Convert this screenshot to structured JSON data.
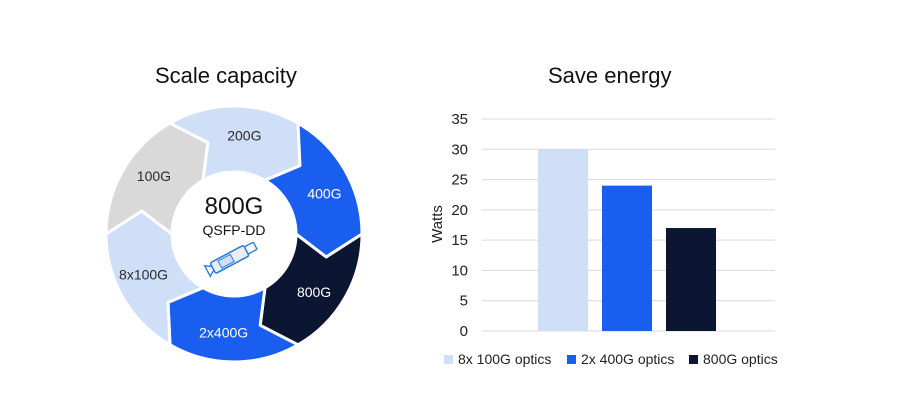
{
  "titles": {
    "left": "Scale capacity",
    "right": "Save energy"
  },
  "donut": {
    "center_title": "800G",
    "center_subtitle": "QSFP-DD",
    "segments": [
      {
        "label": "200G",
        "color": "#cfdff7",
        "text_color": "#2b2b2b"
      },
      {
        "label": "400G",
        "color": "#1a5ef0",
        "text_color": "#ffffff"
      },
      {
        "label": "800G",
        "color": "#0b1633",
        "text_color": "#ffffff"
      },
      {
        "label": "2x400G",
        "color": "#1a5ef0",
        "text_color": "#ffffff"
      },
      {
        "label": "8x100G",
        "color": "#cfdff7",
        "text_color": "#2b2b2b"
      },
      {
        "label": "100G",
        "color": "#d9d9d9",
        "text_color": "#2b2b2b"
      }
    ],
    "icon": "qsfp-transceiver-icon"
  },
  "chart_data": {
    "type": "bar",
    "title": "Save energy",
    "xlabel": "",
    "ylabel": "Watts",
    "ylim": [
      0,
      35
    ],
    "yticks": [
      0,
      5,
      10,
      15,
      20,
      25,
      30,
      35
    ],
    "grid": true,
    "legend_position": "bottom",
    "series": [
      {
        "name": "8x 100G optics",
        "values": [
          30
        ],
        "color": "#cfdff7"
      },
      {
        "name": "2x 400G optics",
        "values": [
          24
        ],
        "color": "#1a5ef0"
      },
      {
        "name": "800G optics",
        "values": [
          17
        ],
        "color": "#0b1633"
      }
    ]
  }
}
